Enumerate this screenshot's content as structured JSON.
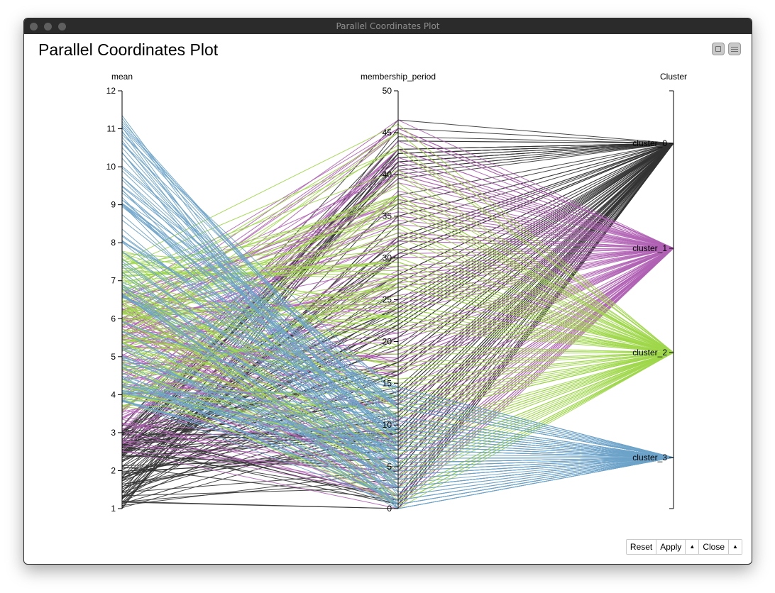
{
  "window": {
    "title": "Parallel Coordinates Plot"
  },
  "page": {
    "title": "Parallel Coordinates Plot"
  },
  "toolbar": {
    "collapse_icon": "collapse-icon",
    "menu_icon": "hamburger-menu-icon"
  },
  "footer": {
    "reset_label": "Reset",
    "apply_label": "Apply",
    "apply_menu_icon": "▲",
    "close_label": "Close",
    "close_menu_icon": "▲"
  },
  "chart_data": {
    "type": "parallel_coordinates",
    "axes": [
      {
        "name": "mean",
        "range": [
          1,
          12
        ],
        "ticks": [
          1,
          2,
          3,
          4,
          5,
          6,
          7,
          8,
          9,
          10,
          11,
          12
        ]
      },
      {
        "name": "membership_period",
        "range": [
          0,
          50
        ],
        "ticks": [
          0,
          5,
          10,
          15,
          20,
          25,
          30,
          35,
          40,
          45,
          50
        ]
      },
      {
        "name": "Cluster",
        "categories": [
          "cluster_0",
          "cluster_1",
          "cluster_2",
          "cluster_3"
        ]
      }
    ],
    "series": [
      {
        "name": "cluster_0",
        "color": "#333333",
        "mean_range": [
          1,
          3.2
        ],
        "membership_period_range": [
          0,
          47
        ]
      },
      {
        "name": "cluster_1",
        "color": "#b062b4",
        "mean_range": [
          2.5,
          6.8
        ],
        "membership_period_range": [
          0,
          47
        ]
      },
      {
        "name": "cluster_2",
        "color": "#9ed74a",
        "mean_range": [
          3.5,
          7.8
        ],
        "membership_period_range": [
          0,
          46
        ]
      },
      {
        "name": "cluster_3",
        "color": "#6da3c9",
        "mean_range": [
          3.8,
          11.5
        ],
        "membership_period_range": [
          0,
          15
        ]
      }
    ]
  }
}
